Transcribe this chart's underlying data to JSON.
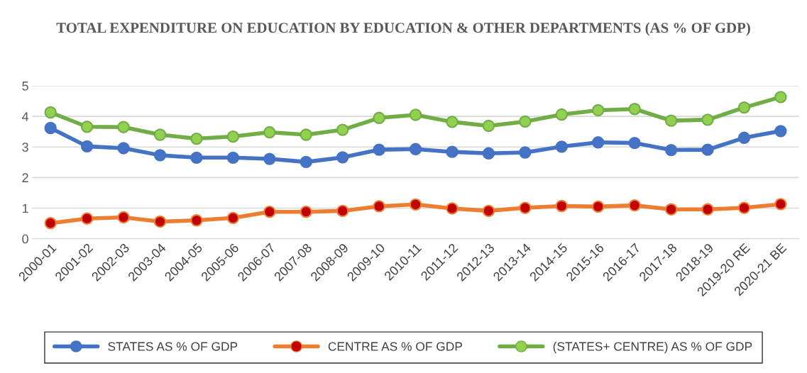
{
  "chart_data": {
    "type": "line",
    "title": "TOTAL EXPENDITURE ON EDUCATION BY EDUCATION & OTHER DEPARTMENTS (AS % OF GDP)",
    "categories": [
      "2000-01",
      "2001-02",
      "2002-03",
      "2003-04",
      "2004-05",
      "2005-06",
      "2006-07",
      "2007-08",
      "2008-09",
      "2009-10",
      "2010-11",
      "2011-12",
      "2012-13",
      "2013-14",
      "2014-15",
      "2015-16",
      "2016-17",
      "2017-18",
      "2018-19",
      "2019-20 RE",
      "2020-21 BE"
    ],
    "series": [
      {
        "name": "STATES AS % OF GDP",
        "color": "#4472c4",
        "values": [
          3.62,
          3.02,
          2.96,
          2.73,
          2.65,
          2.65,
          2.61,
          2.51,
          2.66,
          2.91,
          2.93,
          2.84,
          2.79,
          2.82,
          3.01,
          3.15,
          3.13,
          2.9,
          2.91,
          3.3,
          3.52
        ]
      },
      {
        "name": "CENTRE AS % OF GDP",
        "color": "#ed7d31",
        "values": [
          0.51,
          0.66,
          0.7,
          0.56,
          0.6,
          0.68,
          0.88,
          0.88,
          0.91,
          1.06,
          1.12,
          0.99,
          0.91,
          1.01,
          1.07,
          1.05,
          1.09,
          0.96,
          0.96,
          1.01,
          1.13
        ]
      },
      {
        "name": "(STATES+ CENTRE) AS % OF GDP",
        "color": "#70ad47",
        "values": [
          4.13,
          3.66,
          3.65,
          3.4,
          3.27,
          3.34,
          3.48,
          3.4,
          3.56,
          3.95,
          4.05,
          3.82,
          3.69,
          3.83,
          4.06,
          4.2,
          4.24,
          3.86,
          3.89,
          4.29,
          4.63
        ]
      }
    ],
    "ylim": [
      0,
      5
    ],
    "yticks": [
      0,
      1,
      2,
      3,
      4,
      5
    ],
    "grid": "y",
    "legend": "bottom",
    "marker": "circle",
    "line_style": "solid"
  }
}
